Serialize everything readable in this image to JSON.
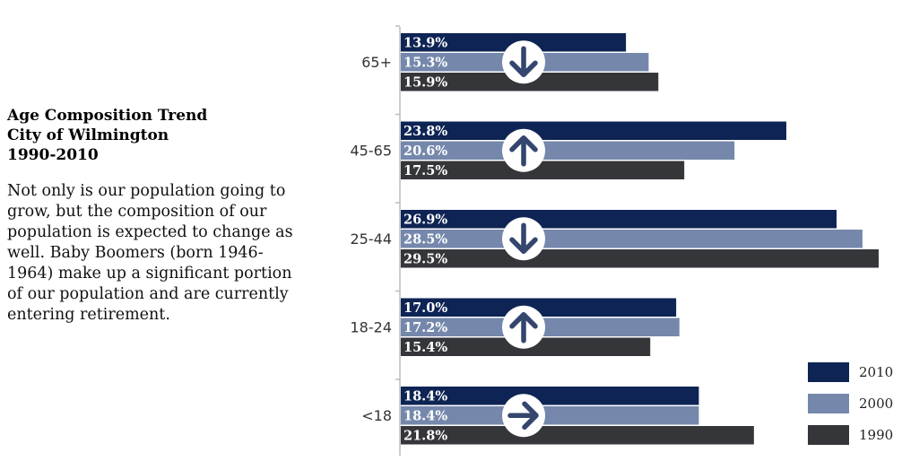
{
  "sidebar": {
    "title_lines": [
      "Age Composition Trend",
      "City of Wilmington",
      "1990-2010"
    ],
    "description": "Not only is our population going to grow, but the composition of our population is expected to change as well. Baby Boomers (born 1946-1964) make up a significant portion of our population and are currently entering retirement."
  },
  "colors": {
    "2010": "#0e2454",
    "2000": "#7588ac",
    "1990": "#35363a",
    "axis": "#bcbcbc"
  },
  "chart_data": {
    "type": "bar",
    "orientation": "horizontal",
    "title": "Age Composition Trend City of Wilmington 1990-2010",
    "xlabel": "",
    "ylabel": "",
    "unit": "%",
    "xlim": [
      0,
      30
    ],
    "categories": [
      "65+",
      "45-65",
      "25-44",
      "18-24",
      "<18"
    ],
    "series": [
      {
        "name": "2010",
        "values": [
          13.9,
          23.8,
          26.9,
          17.0,
          18.4
        ],
        "labels": [
          "13.9%",
          "23.8%",
          "26.9%",
          "17.0%",
          "18.4%"
        ]
      },
      {
        "name": "2000",
        "values": [
          15.3,
          20.6,
          28.5,
          17.2,
          18.4
        ],
        "labels": [
          "15.3%",
          "20.6%",
          "28.5%",
          "17.2%",
          "18.4%"
        ]
      },
      {
        "name": "1990",
        "values": [
          15.9,
          17.5,
          29.5,
          15.4,
          21.8
        ],
        "labels": [
          "15.9%",
          "17.5%",
          "29.5%",
          "15.4%",
          "21.8%"
        ]
      }
    ],
    "trend_arrows": [
      "down",
      "up",
      "down",
      "up",
      "right"
    ],
    "legend": [
      "2010",
      "2000",
      "1990"
    ],
    "legend_position": "bottom-right"
  }
}
